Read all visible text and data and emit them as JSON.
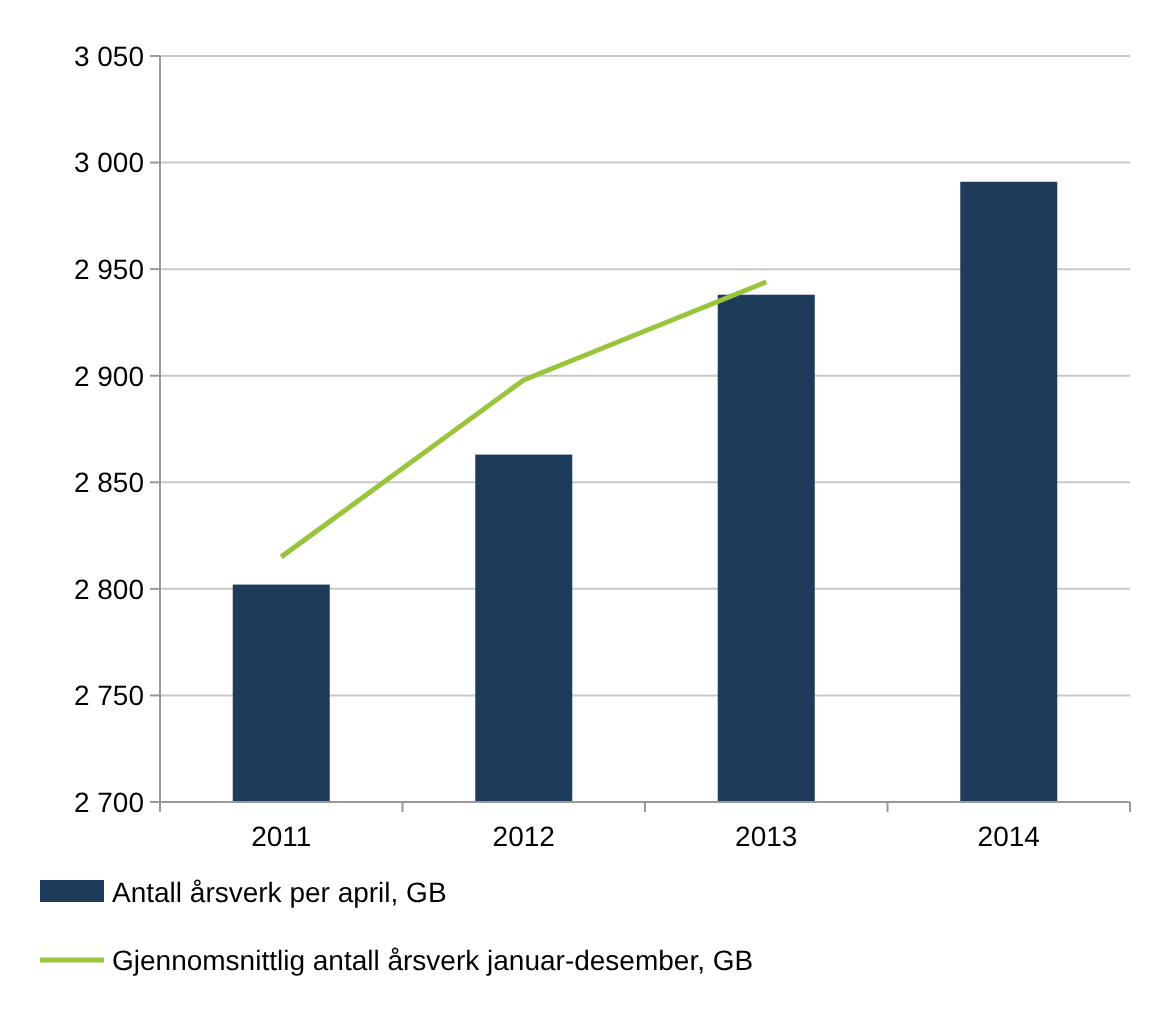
{
  "chart_data": {
    "type": "bar",
    "categories": [
      "2011",
      "2012",
      "2013",
      "2014"
    ],
    "series": [
      {
        "name": "Antall årsverk per april, GB",
        "color": "#1f3b5c",
        "values": [
          2802,
          2863,
          2938,
          2991
        ]
      },
      {
        "name": "Gjennomsnittlig antall årsverk januar-desember, GB",
        "type": "line",
        "color": "#99c43c",
        "values": [
          2815,
          2898,
          2944,
          null
        ]
      }
    ],
    "ylim": [
      2700,
      3050
    ],
    "yticks": [
      {
        "value": 2700,
        "label": "2 700"
      },
      {
        "value": 2750,
        "label": "2 750"
      },
      {
        "value": 2800,
        "label": "2 800"
      },
      {
        "value": 2850,
        "label": "2 850"
      },
      {
        "value": 2900,
        "label": "2 900"
      },
      {
        "value": 2950,
        "label": "2 950"
      },
      {
        "value": 3000,
        "label": "3 000"
      },
      {
        "value": 3050,
        "label": "3 050"
      }
    ],
    "grid": "y",
    "legend": "bottom"
  }
}
